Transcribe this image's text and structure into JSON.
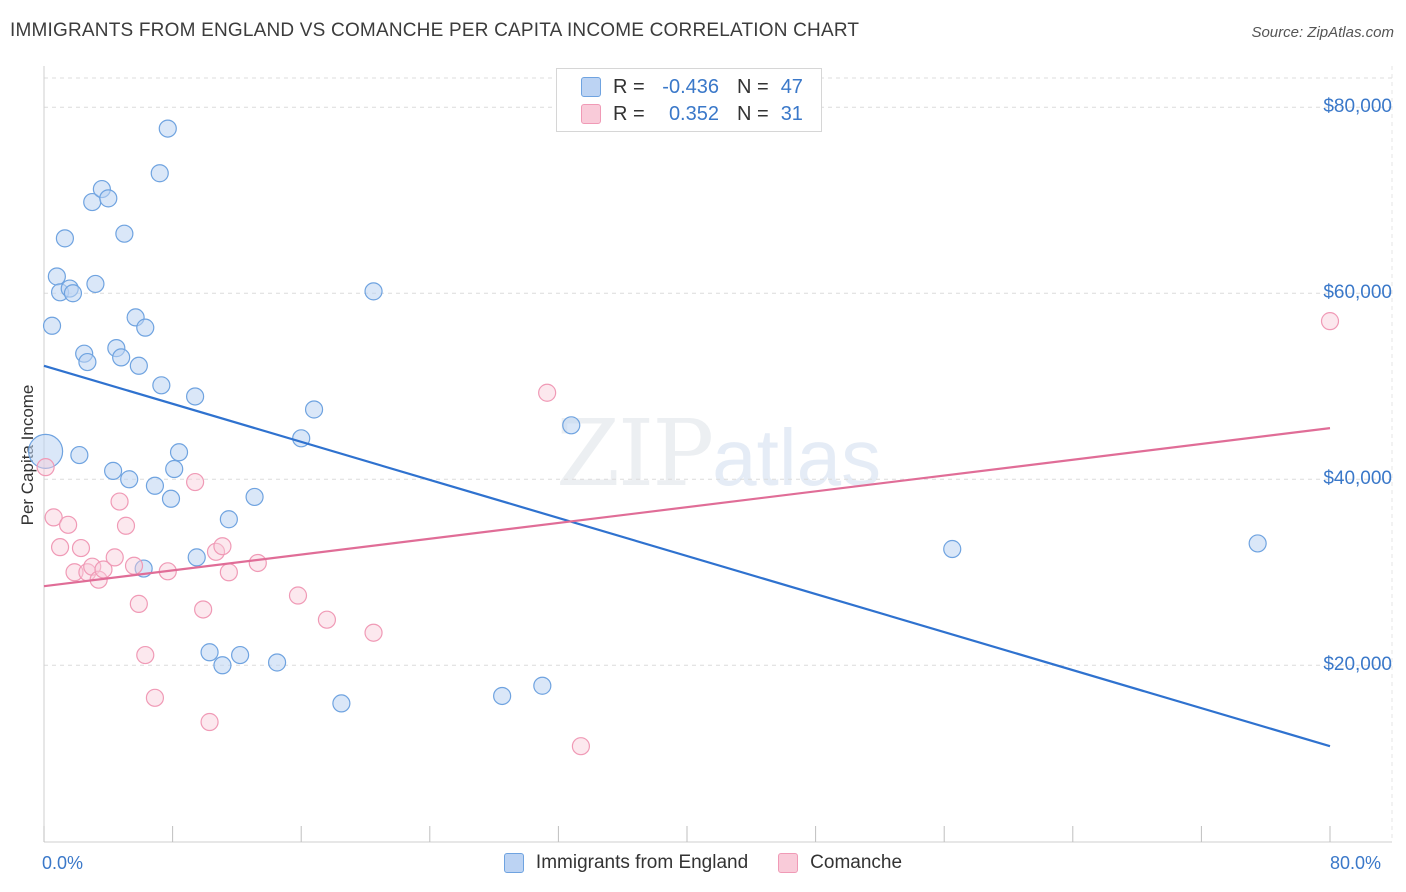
{
  "chart_data": {
    "type": "scatter",
    "title": "IMMIGRANTS FROM ENGLAND VS COMANCHE PER CAPITA INCOME CORRELATION CHART",
    "source": "Source: ZipAtlas.com",
    "watermark": {
      "zip": "ZIP",
      "atlas": "atlas"
    },
    "xlabel": "",
    "ylabel": "Per Capita Income",
    "xlim": [
      0,
      80
    ],
    "ylim": [
      1000,
      84000
    ],
    "x_tick_labels": [
      "0.0%",
      "80.0%"
    ],
    "y_ticks": [
      20000,
      40000,
      60000,
      80000
    ],
    "y_tick_labels": [
      "$20,000",
      "$40,000",
      "$60,000",
      "$80,000"
    ],
    "legend": [
      {
        "name": "Immigrants from England",
        "r_label": "R =",
        "r": "-0.436",
        "n_label": "N =",
        "n": "47"
      },
      {
        "name": "Comanche",
        "r_label": "R =",
        "r": "0.352",
        "n_label": "N =",
        "n": "31"
      }
    ],
    "colors": {
      "england": "#6fa3e0",
      "england_line": "#2f72cf",
      "comanche": "#f09ab6",
      "comanche_line": "#e06d97"
    },
    "series": [
      {
        "name": "Immigrants from England",
        "trend": {
          "x": [
            0,
            80
          ],
          "y": [
            52200,
            11300
          ]
        },
        "points": [
          [
            0.1,
            43000
          ],
          [
            0.5,
            56500
          ],
          [
            0.8,
            61800
          ],
          [
            1.0,
            60100
          ],
          [
            1.3,
            65900
          ],
          [
            1.6,
            60500
          ],
          [
            1.8,
            60000
          ],
          [
            2.2,
            42600
          ],
          [
            2.5,
            53500
          ],
          [
            2.7,
            52600
          ],
          [
            3.2,
            61000
          ],
          [
            3.0,
            69800
          ],
          [
            3.6,
            71200
          ],
          [
            4.0,
            70200
          ],
          [
            4.3,
            40900
          ],
          [
            4.5,
            54100
          ],
          [
            4.8,
            53100
          ],
          [
            5.0,
            66400
          ],
          [
            5.3,
            40000
          ],
          [
            5.7,
            57400
          ],
          [
            5.9,
            52200
          ],
          [
            6.2,
            30400
          ],
          [
            6.3,
            56300
          ],
          [
            6.9,
            39300
          ],
          [
            7.2,
            72900
          ],
          [
            7.3,
            50100
          ],
          [
            7.7,
            77700
          ],
          [
            7.9,
            37900
          ],
          [
            8.1,
            41100
          ],
          [
            8.4,
            42900
          ],
          [
            9.4,
            48900
          ],
          [
            9.5,
            31600
          ],
          [
            10.3,
            21400
          ],
          [
            11.1,
            20000
          ],
          [
            11.5,
            35700
          ],
          [
            12.2,
            21100
          ],
          [
            13.1,
            38100
          ],
          [
            14.5,
            20300
          ],
          [
            16.0,
            44400
          ],
          [
            16.8,
            47500
          ],
          [
            18.5,
            15900
          ],
          [
            20.5,
            60200
          ],
          [
            28.5,
            16700
          ],
          [
            31.0,
            17800
          ],
          [
            32.8,
            45800
          ],
          [
            56.5,
            32500
          ],
          [
            75.5,
            33100
          ]
        ]
      },
      {
        "name": "Comanche",
        "trend": {
          "x": [
            0,
            80
          ],
          "y": [
            28500,
            45500
          ]
        },
        "points": [
          [
            0.1,
            41300
          ],
          [
            0.6,
            35900
          ],
          [
            1.0,
            32700
          ],
          [
            1.5,
            35100
          ],
          [
            1.9,
            30000
          ],
          [
            2.3,
            32600
          ],
          [
            2.7,
            30000
          ],
          [
            3.0,
            30600
          ],
          [
            3.4,
            29200
          ],
          [
            3.7,
            30300
          ],
          [
            4.4,
            31600
          ],
          [
            4.7,
            37600
          ],
          [
            5.1,
            35000
          ],
          [
            5.6,
            30700
          ],
          [
            5.9,
            26600
          ],
          [
            6.3,
            21100
          ],
          [
            6.9,
            16500
          ],
          [
            7.7,
            30100
          ],
          [
            9.4,
            39700
          ],
          [
            9.9,
            26000
          ],
          [
            10.3,
            13900
          ],
          [
            10.7,
            32200
          ],
          [
            11.1,
            32800
          ],
          [
            11.5,
            30000
          ],
          [
            13.3,
            31000
          ],
          [
            15.8,
            27500
          ],
          [
            17.6,
            24900
          ],
          [
            20.5,
            23500
          ],
          [
            31.3,
            49300
          ],
          [
            33.4,
            11300
          ],
          [
            80.0,
            57000
          ]
        ]
      }
    ]
  }
}
